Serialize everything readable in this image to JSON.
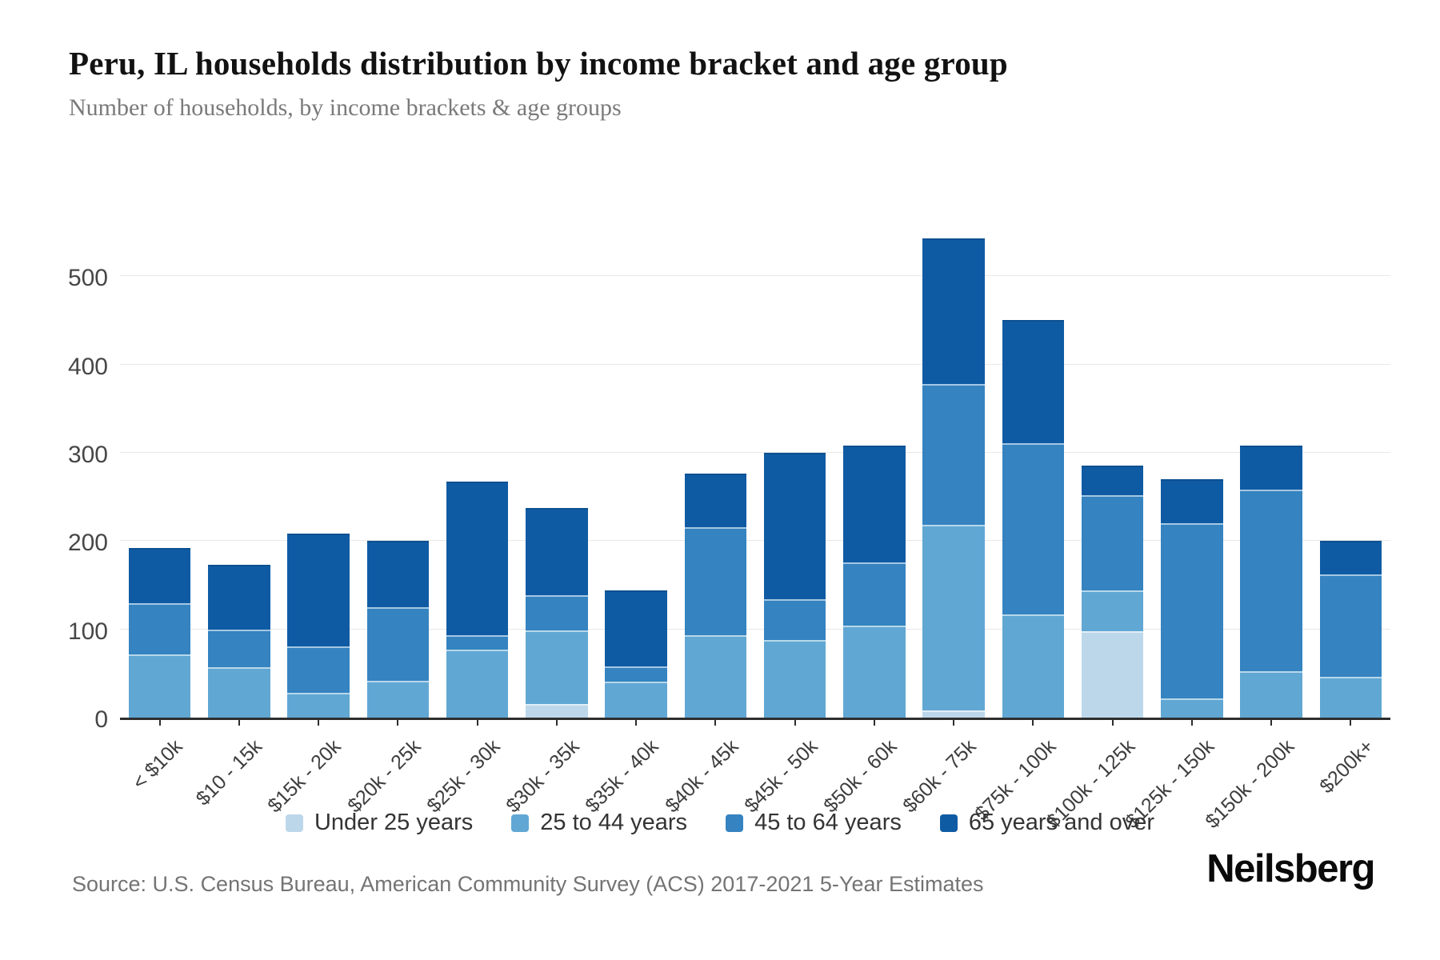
{
  "header": {
    "title": "Peru, IL households distribution by income bracket and age group",
    "subtitle": "Number of households, by income brackets & age groups"
  },
  "chart_data": {
    "type": "bar",
    "stacked": true,
    "categories": [
      "< $10k",
      "$10 - 15k",
      "$15k - 20k",
      "$20k - 25k",
      "$25k - 30k",
      "$30k - 35k",
      "$35k - 40k",
      "$40k - 45k",
      "$45k - 50k",
      "$50k - 60k",
      "$60k - 75k",
      "$75k - 100k",
      "$100k - 125k",
      "$125k - 150k",
      "$150k - 200k",
      "$200k+"
    ],
    "series": [
      {
        "name": "Under 25 years",
        "color": "#bdd7ea",
        "values": [
          0,
          0,
          0,
          0,
          0,
          15,
          0,
          0,
          0,
          0,
          8,
          0,
          98,
          0,
          0,
          0
        ]
      },
      {
        "name": "25 to 44 years",
        "color": "#61a7d3",
        "values": [
          72,
          57,
          28,
          42,
          77,
          84,
          41,
          93,
          88,
          104,
          210,
          117,
          46,
          22,
          53,
          46
        ]
      },
      {
        "name": "45 to 64 years",
        "color": "#3583c0",
        "values": [
          58,
          43,
          53,
          83,
          16,
          40,
          17,
          123,
          46,
          72,
          160,
          194,
          108,
          198,
          205,
          116
        ]
      },
      {
        "name": "65 years and over",
        "color": "#0f5ba3",
        "values": [
          62,
          73,
          127,
          75,
          174,
          98,
          86,
          60,
          166,
          132,
          165,
          139,
          33,
          50,
          50,
          38
        ]
      }
    ],
    "title": "Peru, IL households distribution by income bracket and age group",
    "xlabel": "",
    "ylabel": "",
    "ylim": [
      0,
      550
    ],
    "yticks": [
      0,
      100,
      200,
      300,
      400,
      500
    ],
    "grid": true,
    "legend_position": "bottom"
  },
  "footer": {
    "source": "Source: U.S. Census Bureau, American Community Survey (ACS) 2017-2021 5-Year Estimates",
    "brand": "Neilsberg"
  }
}
